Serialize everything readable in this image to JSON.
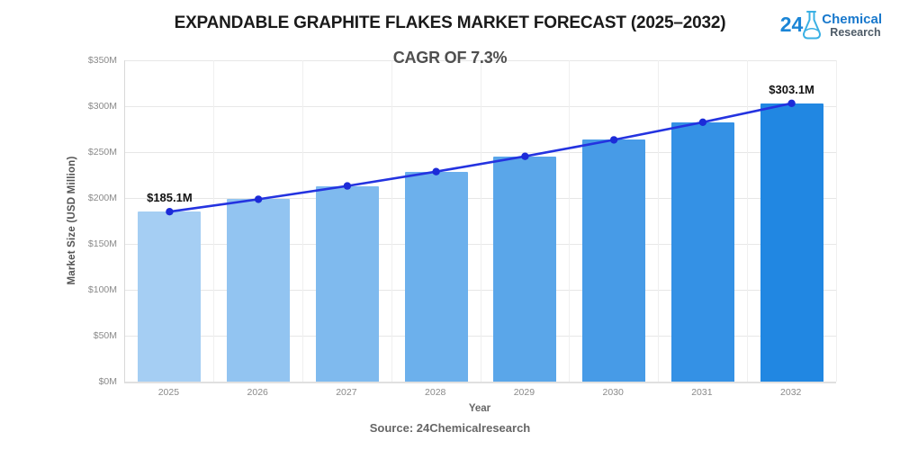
{
  "header": {
    "title": "EXPANDABLE GRAPHITE FLAKES MARKET FORECAST (2025–2032)",
    "subtitle": "CAGR OF 7.3%"
  },
  "logo": {
    "number": "24",
    "line1": "Chemical",
    "line2": "Research",
    "number_color": "#1b85d6",
    "flask_color": "#3ab0e4",
    "line1_color": "#1878cc",
    "line2_color": "#4d5a66"
  },
  "chart_data": {
    "type": "bar",
    "title": "EXPANDABLE GRAPHITE FLAKES MARKET FORECAST (2025–2032)",
    "subtitle": "CAGR OF 7.3%",
    "categories": [
      "2025",
      "2026",
      "2027",
      "2028",
      "2029",
      "2030",
      "2031",
      "2032"
    ],
    "values": [
      185.1,
      198.6,
      213.1,
      228.7,
      245.4,
      263.3,
      282.5,
      303.1
    ],
    "series": [
      {
        "name": "Market Size bars",
        "type": "bar",
        "values": [
          185.1,
          198.6,
          213.1,
          228.7,
          245.4,
          263.3,
          282.5,
          303.1
        ]
      },
      {
        "name": "Trend line",
        "type": "line",
        "values": [
          185.1,
          198.6,
          213.1,
          228.7,
          245.4,
          263.3,
          282.5,
          303.1
        ]
      }
    ],
    "point_labels": [
      "$185.1M",
      "",
      "",
      "",
      "",
      "",
      "",
      "$303.1M"
    ],
    "xlabel": "Year",
    "ylabel": "Market Size (USD Million)",
    "ylim": [
      0,
      350
    ],
    "yticks": [
      0,
      50,
      100,
      150,
      200,
      250,
      300,
      350
    ],
    "ytick_labels": [
      "$0M",
      "$50M",
      "$100M",
      "$150M",
      "$200M",
      "$250M",
      "$300M",
      "$350M"
    ],
    "grid": true,
    "legend": "none",
    "bar_colors": [
      "#A5CEF3",
      "#92C4F1",
      "#7FBAEE",
      "#6CB0EC",
      "#5AA6E9",
      "#479BE7",
      "#3491E5",
      "#2187E2"
    ],
    "line_color": "#2433E0",
    "marker_color": "#1C2BD8"
  },
  "footer": {
    "source": "Source: 24Chemicalresearch"
  }
}
